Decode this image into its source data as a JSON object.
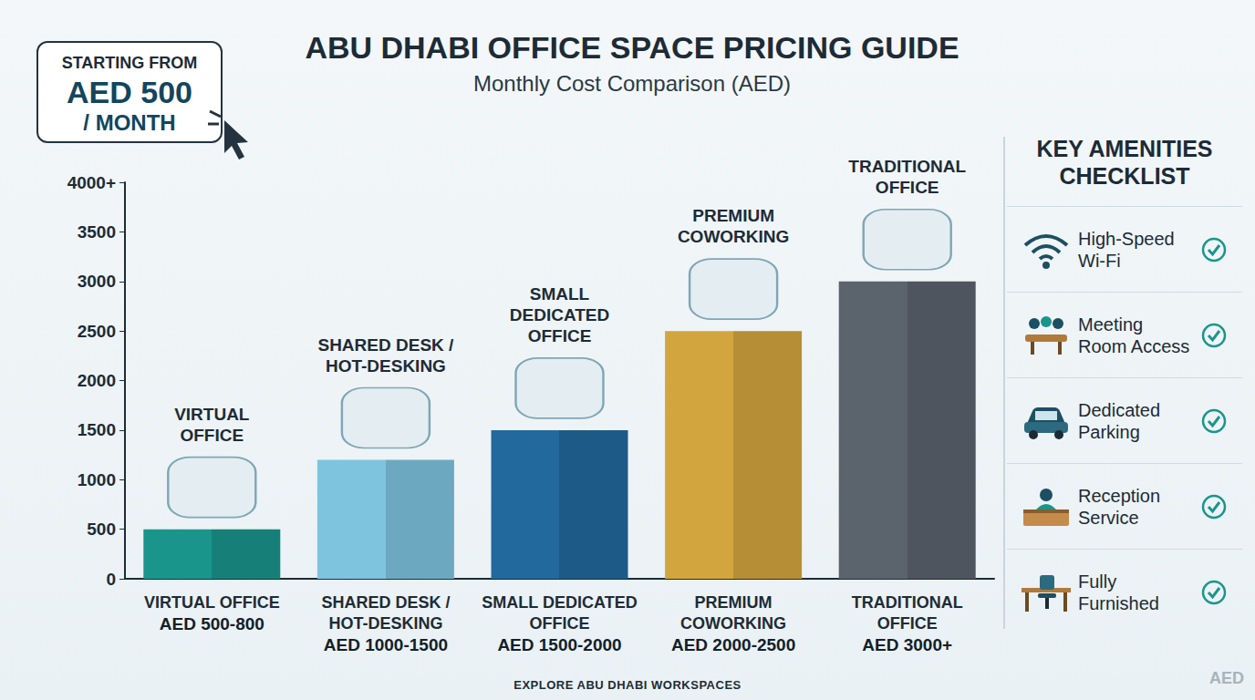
{
  "chart_data": {
    "type": "bar",
    "title": "ABU DHABI OFFICE SPACE PRICING GUIDE",
    "subtitle": "Monthly Cost Comparison (AED)",
    "categories": [
      "VIRTUAL OFFICE",
      "SHARED DESK / HOT-DESKING",
      "SMALL DEDICATED OFFICE",
      "PREMIUM COWORKING",
      "TRADITIONAL OFFICE"
    ],
    "values": [
      500,
      1200,
      1500,
      2500,
      3000
    ],
    "price_ranges": [
      "AED 500-800",
      "AED 1000-1500",
      "AED 1500-2000",
      "AED 2000-2500",
      "AED 3000+"
    ],
    "colors": [
      "#1a958c",
      "#7ec4df",
      "#22699e",
      "#d3a53f",
      "#5b636d"
    ],
    "ylim": [
      0,
      4000
    ],
    "yticks": [
      0,
      500,
      1000,
      1500,
      2000,
      2500,
      3000,
      3500,
      {
        "value": 4000,
        "label": "4000+"
      }
    ],
    "grid": false
  },
  "badge": {
    "lines": [
      "STARTING FROM",
      "AED 500",
      "/ MONTH"
    ]
  },
  "amenities": {
    "title": "KEY AMENITIES CHECKLIST",
    "items": [
      "High-Speed Wi-Fi",
      "Meeting Room Access",
      "Dedicated Parking",
      "Reception Service",
      "Fully Furnished"
    ]
  },
  "footer": "EXPLORE ABU DHABI WORKSPACES",
  "corner_mark": "AED"
}
